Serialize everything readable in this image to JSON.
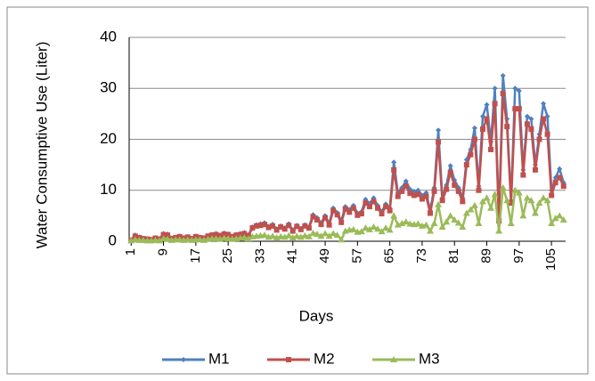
{
  "chart_data": {
    "type": "line",
    "x_label": "Days",
    "y_label": "Water Consumptive Use (Liter)",
    "categories": [
      1,
      null,
      null,
      null,
      null,
      null,
      null,
      null,
      9,
      null,
      null,
      null,
      null,
      null,
      null,
      null,
      17,
      null,
      null,
      null,
      null,
      null,
      null,
      null,
      25,
      null,
      null,
      null,
      null,
      null,
      null,
      null,
      33,
      null,
      null,
      null,
      null,
      null,
      null,
      null,
      41,
      null,
      null,
      null,
      null,
      null,
      null,
      null,
      49,
      null,
      null,
      null,
      null,
      null,
      null,
      null,
      57,
      null,
      null,
      null,
      null,
      null,
      null,
      null,
      65,
      null,
      null,
      null,
      null,
      null,
      null,
      null,
      73,
      null,
      null,
      null,
      null,
      null,
      null,
      null,
      81,
      null,
      null,
      null,
      null,
      null,
      null,
      null,
      89,
      null,
      null,
      null,
      null,
      null,
      null,
      null,
      97,
      null,
      null,
      null,
      null,
      null,
      null,
      null,
      105,
      null,
      null,
      null
    ],
    "series": [
      {
        "name": "M1",
        "color": "#4f81bd",
        "marker": "diamond",
        "values": [
          0.3,
          1.2,
          0.8,
          0.6,
          0.5,
          0.4,
          0.7,
          0.5,
          1.5,
          1.4,
          0.6,
          0.8,
          1.0,
          0.7,
          0.9,
          0.6,
          1.0,
          0.8,
          0.7,
          1.1,
          1.3,
          1.5,
          1.2,
          1.6,
          1.4,
          1.0,
          1.3,
          1.5,
          1.7,
          1.2,
          2.8,
          3.2,
          3.4,
          3.6,
          2.9,
          3.3,
          2.4,
          3.0,
          2.6,
          3.4,
          2.2,
          3.1,
          2.5,
          3.2,
          2.8,
          5.2,
          4.6,
          3.6,
          5.0,
          3.5,
          6.5,
          5.6,
          4.0,
          6.8,
          6.2,
          7.0,
          5.5,
          5.8,
          8.2,
          7.4,
          8.5,
          7.0,
          5.8,
          7.3,
          6.5,
          15.5,
          9.5,
          10.5,
          11.8,
          10.2,
          9.8,
          10.0,
          9.0,
          9.5,
          6.0,
          10.5,
          21.8,
          8.5,
          11.0,
          14.8,
          12.0,
          10.5,
          8.5,
          16.0,
          18.0,
          22.2,
          10.8,
          24.5,
          26.8,
          19.5,
          30.0,
          4.5,
          32.5,
          24.0,
          8.0,
          30.0,
          29.5,
          14.0,
          24.5,
          24.0,
          15.0,
          21.0,
          27.0,
          24.5,
          10.0,
          12.5,
          14.2,
          11.5
        ]
      },
      {
        "name": "M2",
        "color": "#c0504d",
        "marker": "square",
        "values": [
          0.2,
          1.0,
          0.7,
          0.5,
          0.4,
          0.3,
          0.6,
          0.4,
          1.3,
          1.2,
          0.5,
          0.7,
          0.9,
          0.6,
          0.8,
          0.5,
          0.9,
          0.7,
          0.6,
          1.0,
          1.2,
          1.3,
          1.1,
          1.4,
          1.3,
          0.9,
          1.2,
          1.3,
          1.5,
          1.1,
          2.6,
          3.0,
          3.1,
          3.3,
          2.7,
          3.0,
          2.2,
          2.8,
          2.4,
          3.1,
          2.0,
          2.9,
          2.3,
          3.0,
          2.6,
          4.8,
          4.2,
          3.3,
          4.6,
          3.2,
          6.0,
          5.2,
          3.7,
          6.3,
          5.7,
          6.5,
          5.1,
          5.4,
          7.5,
          6.8,
          7.8,
          6.5,
          5.4,
          6.8,
          6.0,
          14.0,
          8.8,
          9.8,
          10.8,
          9.4,
          9.0,
          9.2,
          8.3,
          8.8,
          5.5,
          9.8,
          19.5,
          8.0,
          10.2,
          13.5,
          11.0,
          9.8,
          7.8,
          15.0,
          17.0,
          20.0,
          10.0,
          22.0,
          24.0,
          18.0,
          27.0,
          4.0,
          29.0,
          22.5,
          7.5,
          26.0,
          26.0,
          13.0,
          23.0,
          22.0,
          14.0,
          20.0,
          24.0,
          21.0,
          9.0,
          11.5,
          12.5,
          10.8
        ]
      },
      {
        "name": "M3",
        "color": "#9bbb59",
        "marker": "triangle",
        "values": [
          0.1,
          0.3,
          0.2,
          0.2,
          0.1,
          0.1,
          0.2,
          0.1,
          0.5,
          0.4,
          0.2,
          0.3,
          0.3,
          0.2,
          0.3,
          0.2,
          0.3,
          0.3,
          0.2,
          0.4,
          0.5,
          0.5,
          0.4,
          0.6,
          0.5,
          0.4,
          0.5,
          0.6,
          0.7,
          0.5,
          0.9,
          1.0,
          1.1,
          1.2,
          0.8,
          1.0,
          0.7,
          0.9,
          0.8,
          1.1,
          0.7,
          1.0,
          0.8,
          1.1,
          0.9,
          1.6,
          1.4,
          1.0,
          1.5,
          1.0,
          1.5,
          1.2,
          0.3,
          2.0,
          2.2,
          2.3,
          1.8,
          1.9,
          2.6,
          2.3,
          2.8,
          2.4,
          1.9,
          2.6,
          2.2,
          5.0,
          3.2,
          3.5,
          3.8,
          3.4,
          3.3,
          3.4,
          3.0,
          3.2,
          2.0,
          3.5,
          7.2,
          2.8,
          3.8,
          5.0,
          4.2,
          3.6,
          2.8,
          5.5,
          6.2,
          7.0,
          3.5,
          7.8,
          8.5,
          6.5,
          9.2,
          2.0,
          10.5,
          8.0,
          3.5,
          10.0,
          9.5,
          5.0,
          8.5,
          8.0,
          5.5,
          7.5,
          8.5,
          8.0,
          3.5,
          4.5,
          5.0,
          4.2
        ]
      }
    ],
    "ylim": [
      0,
      40
    ],
    "yticks": [
      0,
      10,
      20,
      30,
      40
    ],
    "grid": true,
    "legend": "bottom"
  }
}
